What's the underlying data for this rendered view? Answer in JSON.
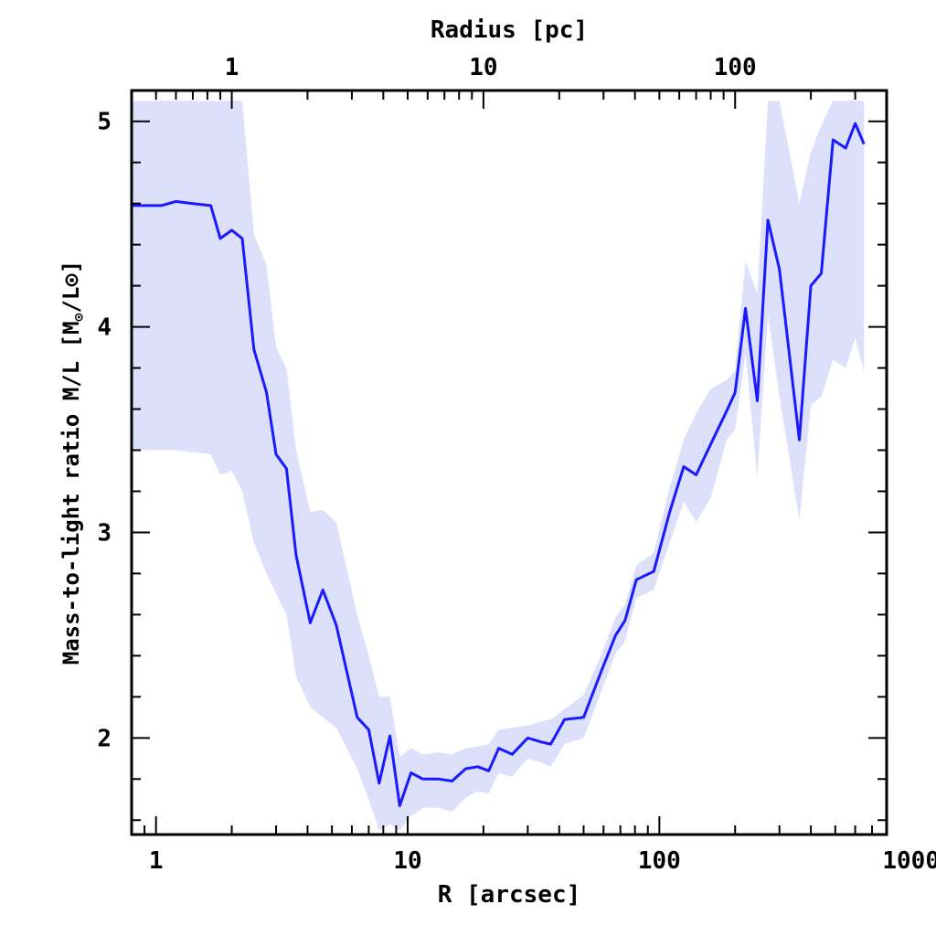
{
  "chart_data": {
    "type": "line",
    "title": "",
    "xlabel": "R [arcsec]",
    "xscale": "log",
    "xlim": [
      0.8,
      800
    ],
    "xticks": [
      1,
      10,
      100,
      1000
    ],
    "xticklabels": [
      "1",
      "10",
      "100",
      "1000"
    ],
    "x2label": "Radius [pc]",
    "x2ticks_arcsec": [
      2.0,
      20.0,
      200.0
    ],
    "x2ticklabels": [
      "1",
      "10",
      "100"
    ],
    "ylabel": {
      "text": "Mass-to-light ratio M/L [M",
      "sub": "⊙",
      "tail": "/L⊙]"
    },
    "ylim": [
      1.53,
      5.15
    ],
    "yticks": [
      2,
      3,
      4,
      5
    ],
    "yticklabels": [
      "2",
      "3",
      "4",
      "5"
    ],
    "line_color": "#1a1aff",
    "band_color": "#dde0fb",
    "series": [
      {
        "name": "M/L",
        "x": [
          0.8,
          0.9,
          1.05,
          1.2,
          1.4,
          1.65,
          1.8,
          2.0,
          2.2,
          2.45,
          2.75,
          3.0,
          3.3,
          3.6,
          4.1,
          4.6,
          5.2,
          6.3,
          7.0,
          7.7,
          8.5,
          9.3,
          10.3,
          11.5,
          13.3,
          15.0,
          17.0,
          19.0,
          21.0,
          23.0,
          26.0,
          30.0,
          34.0,
          37.0,
          42.0,
          50.0,
          59.0,
          67.0,
          73.0,
          81.0,
          95.0,
          110.0,
          125.0,
          140.0,
          160.0,
          185.0,
          200.0,
          220.0,
          245.0,
          270.0,
          300.0,
          360.0,
          400.0,
          440.0,
          490.0,
          550.0,
          600.0,
          650.0
        ],
        "values": [
          4.59,
          4.59,
          4.59,
          4.61,
          4.6,
          4.59,
          4.43,
          4.47,
          4.43,
          3.89,
          3.68,
          3.38,
          3.31,
          2.89,
          2.56,
          2.72,
          2.55,
          2.1,
          2.04,
          1.78,
          2.01,
          1.67,
          1.83,
          1.8,
          1.8,
          1.79,
          1.85,
          1.86,
          1.84,
          1.95,
          1.92,
          2.0,
          1.98,
          1.97,
          2.09,
          2.1,
          2.33,
          2.5,
          2.57,
          2.77,
          2.81,
          3.1,
          3.32,
          3.28,
          3.43,
          3.59,
          3.68,
          4.09,
          3.64,
          4.52,
          4.28,
          3.45,
          4.2,
          4.26,
          4.91,
          4.87,
          4.99,
          4.89
        ],
        "band_upper": [
          5.1,
          5.1,
          5.1,
          5.1,
          5.1,
          5.1,
          5.1,
          5.1,
          5.1,
          4.45,
          4.3,
          3.9,
          3.8,
          3.4,
          3.1,
          3.11,
          3.05,
          2.6,
          2.4,
          2.2,
          2.2,
          1.91,
          1.95,
          1.92,
          1.93,
          1.92,
          1.95,
          1.96,
          1.97,
          2.04,
          2.05,
          2.06,
          2.08,
          2.09,
          2.14,
          2.21,
          2.41,
          2.59,
          2.65,
          2.84,
          2.9,
          3.22,
          3.45,
          3.58,
          3.7,
          3.74,
          3.79,
          4.32,
          4.16,
          5.1,
          5.1,
          4.6,
          4.85,
          4.98,
          5.1,
          5.1,
          5.1,
          5.1
        ],
        "band_lower": [
          3.4,
          3.4,
          3.4,
          3.4,
          3.39,
          3.38,
          3.28,
          3.3,
          3.2,
          2.95,
          2.8,
          2.7,
          2.6,
          2.3,
          2.15,
          2.1,
          2.05,
          1.85,
          1.7,
          1.55,
          1.58,
          1.55,
          1.62,
          1.66,
          1.66,
          1.64,
          1.71,
          1.74,
          1.73,
          1.83,
          1.81,
          1.9,
          1.88,
          1.86,
          1.97,
          2.0,
          2.23,
          2.41,
          2.47,
          2.68,
          2.72,
          2.95,
          3.15,
          3.05,
          3.17,
          3.45,
          3.5,
          3.87,
          3.27,
          4.06,
          3.66,
          3.06,
          3.62,
          3.66,
          3.84,
          3.8,
          3.95,
          3.78
        ]
      }
    ]
  }
}
